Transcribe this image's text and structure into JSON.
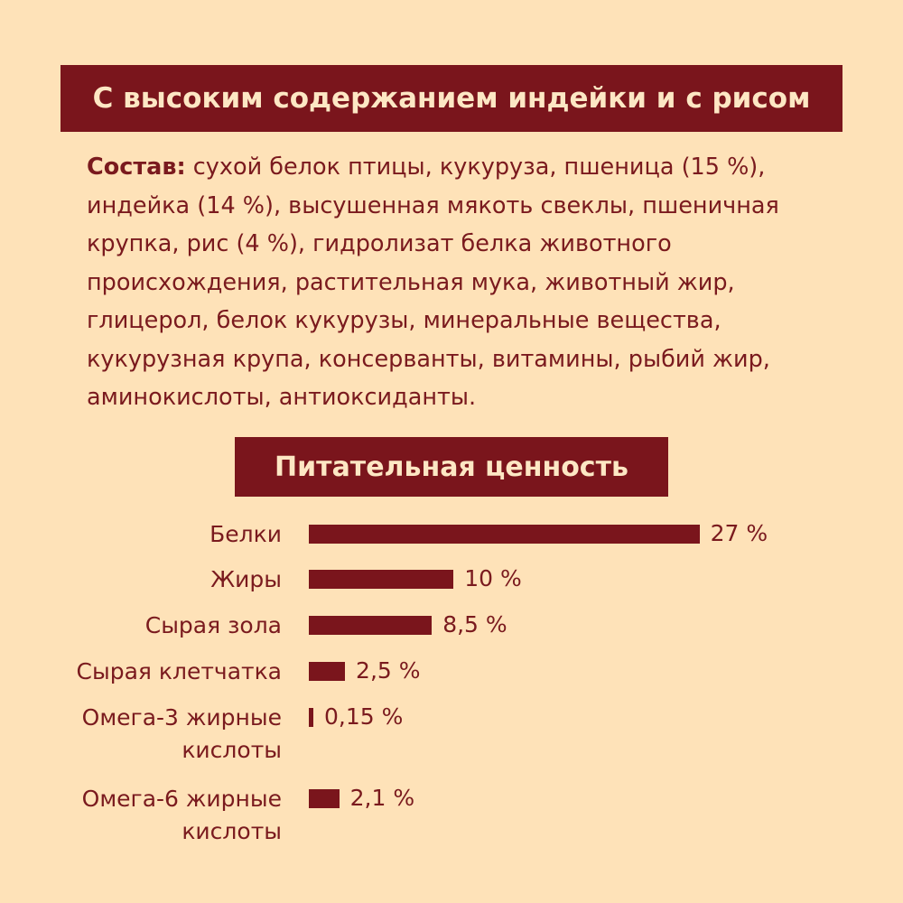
{
  "header": {
    "title": "С высоким содержанием индейки и с рисом"
  },
  "composition": {
    "label": "Состав:",
    "text": " сухой белок птицы, кукуруза, пшеница (15 %), индейка (14 %), высушенная мякоть свеклы, пшеничная крупка, рис (4 %), гидролизат белка животного происхождения, растительная мука, животный жир, глицерол, белок кукурузы, минеральные вещества, кукурузная крупа, консерванты, витамины, рыбий жир, аминокислоты, антиоксиданты."
  },
  "nutrition": {
    "title": "Питательная ценность"
  },
  "colors": {
    "background": "#fee2b8",
    "accent": "#7a151c"
  },
  "chart_data": {
    "type": "bar",
    "orientation": "horizontal",
    "title": "Питательная ценность",
    "categories": [
      "Белки",
      "Жиры",
      "Сырая зола",
      "Сырая клетчатка",
      "Омега-3 жирные кислоты",
      "Омега-6 жирные кислоты"
    ],
    "values": [
      27,
      10,
      8.5,
      2.5,
      0.15,
      2.1
    ],
    "value_labels": [
      "27 %",
      "10 %",
      "8,5 %",
      "2,5 %",
      "0,15 %",
      "2,1 %"
    ],
    "unit": "%",
    "grid": false
  }
}
